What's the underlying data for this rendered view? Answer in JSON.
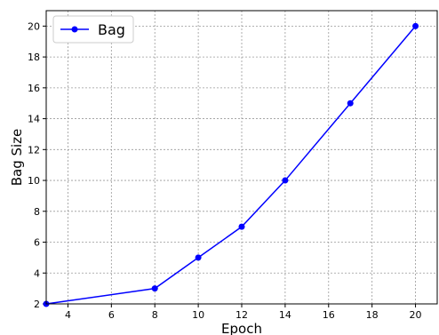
{
  "chart_data": {
    "type": "line",
    "xlabel": "Epoch",
    "ylabel": "Bag Size",
    "xlim": [
      3,
      21
    ],
    "ylim": [
      2,
      21
    ],
    "xticks": [
      4,
      6,
      8,
      10,
      12,
      14,
      16,
      18,
      20
    ],
    "yticks": [
      2,
      4,
      6,
      8,
      10,
      12,
      14,
      16,
      18,
      20
    ],
    "grid": true,
    "legend_position": "upper-left",
    "series": [
      {
        "name": "Bag",
        "color": "#0000ff",
        "marker": "circle",
        "x": [
          3,
          8,
          10,
          12,
          14,
          17,
          20
        ],
        "y": [
          2,
          3,
          5,
          7,
          10,
          15,
          20
        ]
      }
    ]
  }
}
